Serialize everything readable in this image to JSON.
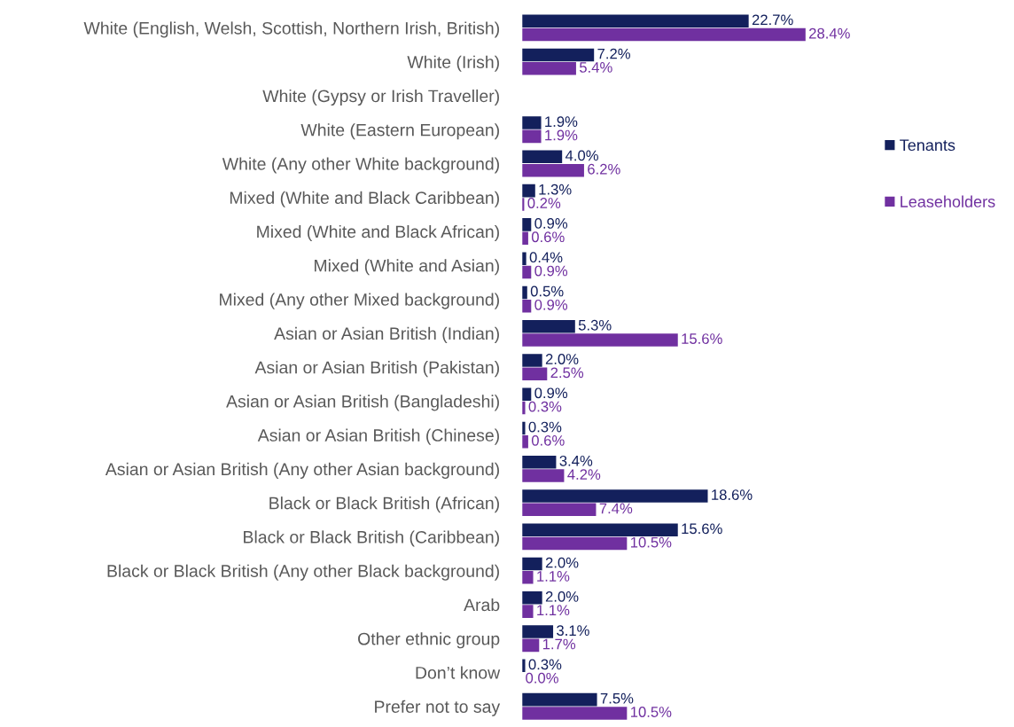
{
  "chart_data": {
    "type": "bar",
    "orientation": "horizontal",
    "tick_labels": "y",
    "legend": "right",
    "grid": false,
    "categories": [
      "White (English, Welsh, Scottish, Northern Irish, British)",
      "White (Irish)",
      "White (Gypsy or Irish Traveller)",
      "White (Eastern European)",
      "White (Any other White background)",
      "Mixed (White and Black Caribbean)",
      "Mixed (White and Black African)",
      "Mixed (White and Asian)",
      "Mixed (Any other Mixed background)",
      "Asian or Asian British (Indian)",
      "Asian or Asian British (Pakistan)",
      "Asian or Asian British (Bangladeshi)",
      "Asian or Asian British (Chinese)",
      "Asian or Asian British (Any other Asian background)",
      "Black or Black British (African)",
      "Black or Black British (Caribbean)",
      "Black or Black British (Any other Black background)",
      "Arab",
      "Other ethnic group",
      "Don’t know",
      "Prefer not to say"
    ],
    "series": [
      {
        "name": "Tenants",
        "color": "#13205c",
        "values": [
          22.7,
          7.2,
          null,
          1.9,
          4.0,
          1.3,
          0.9,
          0.4,
          0.5,
          5.3,
          2.0,
          0.9,
          0.3,
          3.4,
          18.6,
          15.6,
          2.0,
          2.0,
          3.1,
          0.3,
          7.5
        ],
        "value_labels": [
          "22.7%",
          "7.2%",
          null,
          "1.9%",
          "4.0%",
          "1.3%",
          "0.9%",
          "0.4%",
          "0.5%",
          "5.3%",
          "2.0%",
          "0.9%",
          "0.3%",
          "3.4%",
          "18.6%",
          "15.6%",
          "2.0%",
          "2.0%",
          "3.1%",
          "0.3%",
          "7.5%"
        ]
      },
      {
        "name": "Leaseholders",
        "color": "#7030a0",
        "values": [
          28.4,
          5.4,
          null,
          1.9,
          6.2,
          0.2,
          0.6,
          0.9,
          0.9,
          15.6,
          2.5,
          0.3,
          0.6,
          4.2,
          7.4,
          10.5,
          1.1,
          1.1,
          1.7,
          0.0,
          10.5
        ],
        "value_labels": [
          "28.4%",
          "5.4%",
          null,
          "1.9%",
          "6.2%",
          "0.2%",
          "0.6%",
          "0.9%",
          "0.9%",
          "15.6%",
          "2.5%",
          "0.3%",
          "0.6%",
          "4.2%",
          "7.4%",
          "10.5%",
          "1.1%",
          "1.1%",
          "1.7%",
          "0.0%",
          "10.5%"
        ]
      }
    ]
  }
}
